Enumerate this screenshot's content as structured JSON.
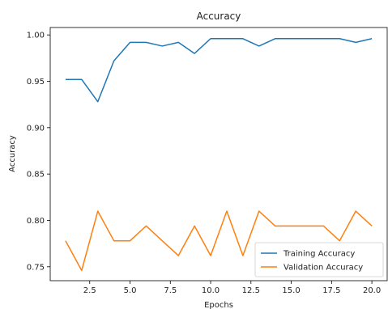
{
  "chart_data": {
    "type": "line",
    "title": "Accuracy",
    "xlabel": "Epochs",
    "ylabel": "Accuracy",
    "xlim": [
      0.05,
      20.95
    ],
    "ylim": [
      0.735,
      1.008
    ],
    "xticks": [
      2.5,
      5.0,
      7.5,
      10.0,
      12.5,
      15.0,
      17.5,
      20.0
    ],
    "xtick_labels": [
      "2.5",
      "5.0",
      "7.5",
      "10.0",
      "12.5",
      "15.0",
      "17.5",
      "20.0"
    ],
    "yticks": [
      0.75,
      0.8,
      0.85,
      0.9,
      0.95,
      1.0
    ],
    "ytick_labels": [
      "0.75",
      "0.80",
      "0.85",
      "0.90",
      "0.95",
      "1.00"
    ],
    "grid": false,
    "legend_position": "bottom-right",
    "x": [
      1,
      2,
      3,
      4,
      5,
      6,
      7,
      8,
      9,
      10,
      11,
      12,
      13,
      14,
      15,
      16,
      17,
      18,
      19,
      20
    ],
    "series": [
      {
        "name": "Training Accuracy",
        "color": "#1f77b4",
        "values": [
          0.952,
          0.952,
          0.928,
          0.972,
          0.992,
          0.992,
          0.988,
          0.992,
          0.98,
          0.996,
          0.996,
          0.996,
          0.988,
          0.996,
          0.996,
          0.996,
          0.996,
          0.996,
          0.992,
          0.996
        ]
      },
      {
        "name": "Validation Accuracy",
        "color": "#ff7f0e",
        "values": [
          0.778,
          0.746,
          0.81,
          0.778,
          0.778,
          0.794,
          0.778,
          0.762,
          0.794,
          0.762,
          0.81,
          0.762,
          0.81,
          0.794,
          0.794,
          0.794,
          0.794,
          0.778,
          0.81,
          0.794
        ]
      }
    ]
  }
}
